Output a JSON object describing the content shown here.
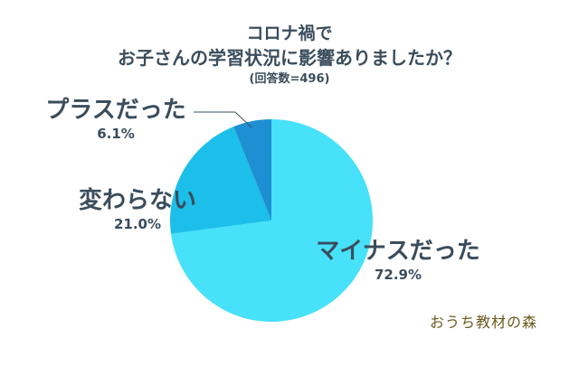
{
  "header": {
    "title_line1": "コロナ禍で",
    "title_line2": "お子さんの学習状況に影響ありましたか？",
    "sample_note": "(回答数=496)"
  },
  "chart_data": {
    "type": "pie",
    "title": "コロナ禍で お子さんの学習状況に影響ありましたか？",
    "slices": [
      {
        "label": "マイナスだった",
        "value": 72.9,
        "value_label": "72.9%",
        "color": "#47e1fa"
      },
      {
        "label": "変わらない",
        "value": 21.0,
        "value_label": "21.0%",
        "color": "#1bbfe9"
      },
      {
        "label": "プラスだった",
        "value": 6.1,
        "value_label": "6.1%",
        "color": "#1e8fd3"
      }
    ]
  },
  "footer": {
    "logo_text": "おうち教材の森"
  }
}
